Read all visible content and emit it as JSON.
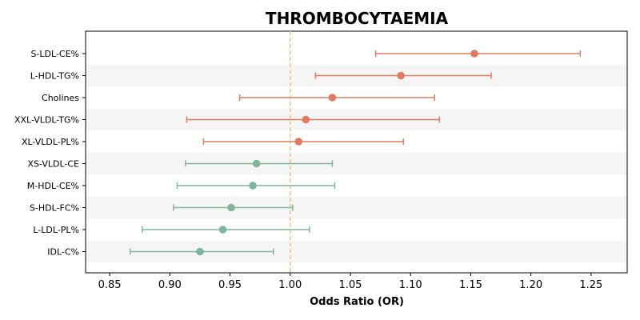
{
  "chart_data": {
    "type": "forest",
    "title": "THROMBOCYTAEMIA",
    "xlabel": "Odds Ratio (OR)",
    "ylabel": "",
    "xlim": [
      0.83,
      1.28
    ],
    "xticks": [
      0.85,
      0.9,
      0.95,
      1.0,
      1.05,
      1.1,
      1.15,
      1.2,
      1.25
    ],
    "xtick_labels": [
      "0.85",
      "0.90",
      "0.95",
      "1.00",
      "1.05",
      "1.10",
      "1.15",
      "1.20",
      "1.25"
    ],
    "reference_line": 1.0,
    "grid": false,
    "alternating_row_shading": true,
    "colors": {
      "positive": "#e07b5f",
      "negative": "#7fb59b",
      "reference": "#f2c27a",
      "row_shade": "#f5f5f5"
    },
    "points": [
      {
        "label": "S-LDL-CE%",
        "or": 1.153,
        "ci_low": 1.071,
        "ci_high": 1.241
      },
      {
        "label": "L-HDL-TG%",
        "or": 1.092,
        "ci_low": 1.021,
        "ci_high": 1.167
      },
      {
        "label": "Cholines",
        "or": 1.035,
        "ci_low": 0.958,
        "ci_high": 1.12
      },
      {
        "label": "XXL-VLDL-TG%",
        "or": 1.013,
        "ci_low": 0.914,
        "ci_high": 1.124
      },
      {
        "label": "XL-VLDL-PL%",
        "or": 1.007,
        "ci_low": 0.928,
        "ci_high": 1.094
      },
      {
        "label": "XS-VLDL-CE",
        "or": 0.972,
        "ci_low": 0.913,
        "ci_high": 1.035
      },
      {
        "label": "M-HDL-CE%",
        "or": 0.969,
        "ci_low": 0.906,
        "ci_high": 1.037
      },
      {
        "label": "S-HDL-FC%",
        "or": 0.951,
        "ci_low": 0.903,
        "ci_high": 1.002
      },
      {
        "label": "L-LDL-PL%",
        "or": 0.944,
        "ci_low": 0.877,
        "ci_high": 1.016
      },
      {
        "label": "IDL-C%",
        "or": 0.925,
        "ci_low": 0.867,
        "ci_high": 0.986
      }
    ]
  }
}
